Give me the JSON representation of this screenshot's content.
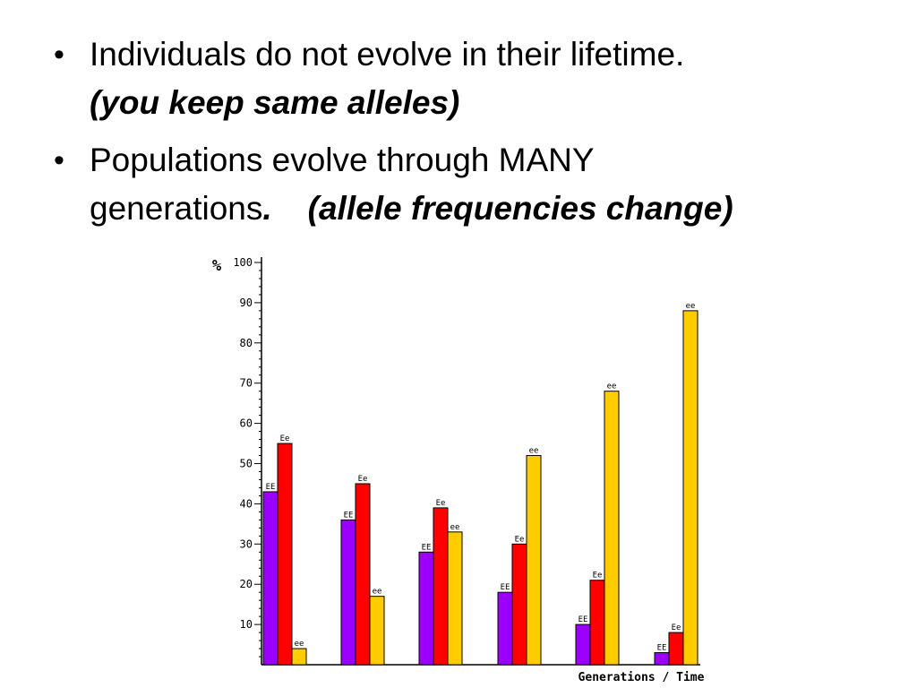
{
  "slide": {
    "bullets": [
      {
        "line1": "Individuals do not evolve in their lifetime.",
        "line2": "(you keep same alleles)"
      },
      {
        "line1": "Populations evolve through MANY",
        "line2_plain": "generations",
        "line2_dot": ".",
        "line2_em": "(allele frequencies change)"
      }
    ],
    "bullet_glyph": "•"
  },
  "chart_data": {
    "type": "bar",
    "title": "",
    "ylabel": "%",
    "xlabel": "Generations / Time",
    "ylim": [
      0,
      100
    ],
    "yticks": [
      10,
      20,
      30,
      40,
      50,
      60,
      70,
      80,
      90,
      100
    ],
    "grid": false,
    "categories": [
      "",
      "",
      "",
      "",
      "",
      ""
    ],
    "series": [
      {
        "name": "EE",
        "color": "#9b00ff",
        "values": [
          43,
          36,
          28,
          18,
          10,
          3
        ]
      },
      {
        "name": "Ee",
        "color": "#ff0000",
        "values": [
          55,
          45,
          39,
          30,
          21,
          8
        ]
      },
      {
        "name": "ee",
        "color": "#ffcc00",
        "values": [
          4,
          17,
          33,
          52,
          68,
          88
        ]
      }
    ]
  }
}
